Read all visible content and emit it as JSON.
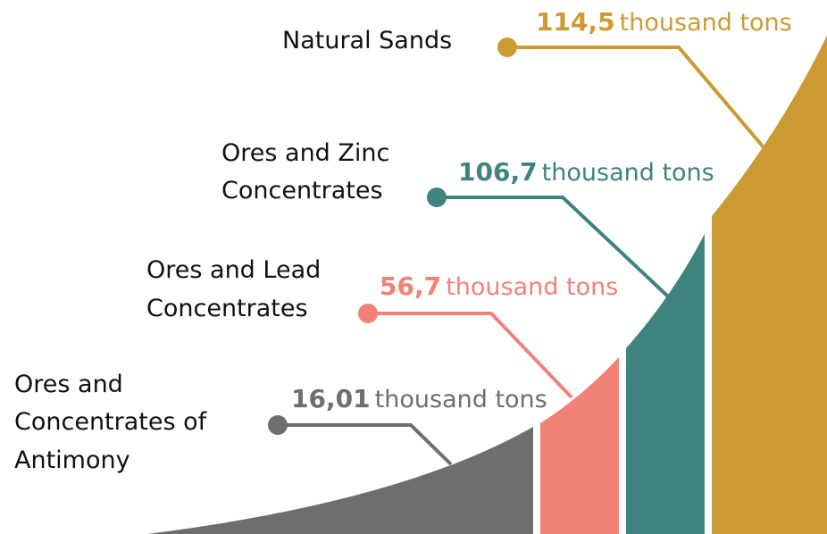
{
  "items": [
    {
      "label": [
        "Natural Sands"
      ],
      "value": "114,5",
      "unit": "thousand tons"
    },
    {
      "label": [
        "Ores and Zinc",
        "Concentrates"
      ],
      "value": "106,7",
      "unit": "thousand tons"
    },
    {
      "label": [
        "Ores and Lead",
        "Concentrates"
      ],
      "value": "56,7",
      "unit": "thousand tons"
    },
    {
      "label": [
        "Ores and",
        "Concentrates of",
        "Antimony"
      ],
      "value": "16,01",
      "unit": "thousand tons"
    }
  ]
}
